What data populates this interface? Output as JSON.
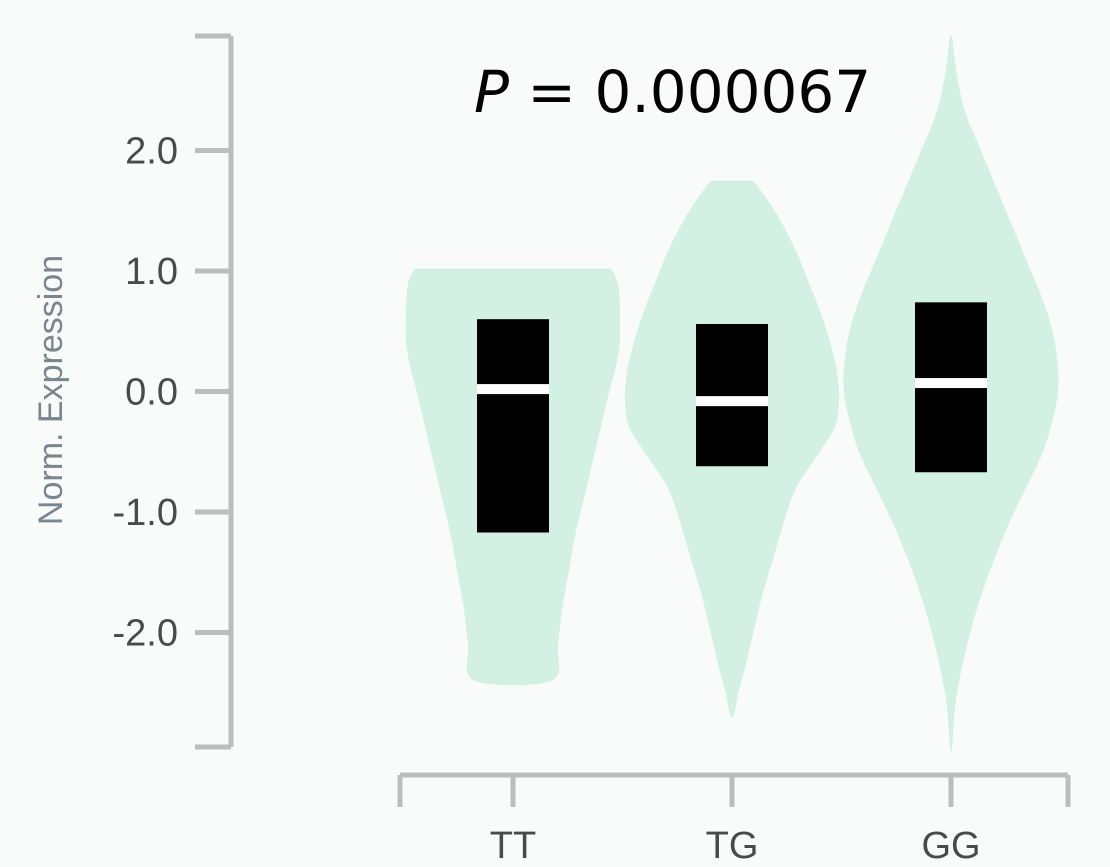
{
  "chart_data": {
    "type": "violin",
    "title": "",
    "annotation": {
      "prefix": "P",
      "text": " = 0.000067"
    },
    "xlabel": "",
    "ylabel": "Norm. Expression",
    "ylim": [
      -2.95,
      2.95
    ],
    "yticks": [
      2.0,
      1.0,
      0.0,
      -1.0,
      -2.0
    ],
    "ytick_labels": [
      "2.0",
      "1.0",
      "0.0",
      "-1.0",
      "-2.0"
    ],
    "categories": [
      "TT",
      "TG",
      "GG"
    ],
    "colors": {
      "violin": "#d2f0e4",
      "box": "#000000",
      "median": "#ffffff",
      "axis": "#bdbdbd"
    },
    "groups": [
      {
        "name": "TT",
        "median": 0.02,
        "q1": -1.17,
        "q3": 0.6,
        "min": -2.4,
        "max": 1.02,
        "density": [
          [
            1.02,
            0.92
          ],
          [
            0.9,
            0.98
          ],
          [
            0.7,
            1.0
          ],
          [
            0.5,
            1.0
          ],
          [
            0.4,
            1.0
          ],
          [
            0.2,
            0.96
          ],
          [
            0.0,
            0.9
          ],
          [
            -0.3,
            0.82
          ],
          [
            -0.6,
            0.74
          ],
          [
            -0.9,
            0.66
          ],
          [
            -1.2,
            0.58
          ],
          [
            -1.5,
            0.52
          ],
          [
            -1.8,
            0.46
          ],
          [
            -2.1,
            0.42
          ],
          [
            -2.4,
            0.36
          ]
        ]
      },
      {
        "name": "TG",
        "median": -0.08,
        "q1": -0.62,
        "q3": 0.56,
        "min": -2.68,
        "max": 1.75,
        "density": [
          [
            1.75,
            0.2
          ],
          [
            1.5,
            0.4
          ],
          [
            1.2,
            0.58
          ],
          [
            0.9,
            0.72
          ],
          [
            0.6,
            0.85
          ],
          [
            0.3,
            0.95
          ],
          [
            0.1,
            0.99
          ],
          [
            -0.1,
            1.0
          ],
          [
            -0.3,
            0.96
          ],
          [
            -0.5,
            0.82
          ],
          [
            -0.8,
            0.6
          ],
          [
            -1.1,
            0.48
          ],
          [
            -1.4,
            0.38
          ],
          [
            -1.7,
            0.28
          ],
          [
            -2.0,
            0.2
          ],
          [
            -2.3,
            0.12
          ],
          [
            -2.5,
            0.06
          ],
          [
            -2.68,
            0.02
          ]
        ]
      },
      {
        "name": "GG",
        "median": 0.07,
        "q1": -0.67,
        "q3": 0.74,
        "min": -2.95,
        "max": 2.95,
        "density": [
          [
            2.95,
            0.01
          ],
          [
            2.6,
            0.06
          ],
          [
            2.3,
            0.14
          ],
          [
            2.0,
            0.28
          ],
          [
            1.7,
            0.42
          ],
          [
            1.4,
            0.56
          ],
          [
            1.1,
            0.7
          ],
          [
            0.8,
            0.84
          ],
          [
            0.5,
            0.95
          ],
          [
            0.2,
            1.0
          ],
          [
            0.0,
            1.0
          ],
          [
            -0.2,
            0.96
          ],
          [
            -0.5,
            0.86
          ],
          [
            -0.8,
            0.7
          ],
          [
            -1.1,
            0.54
          ],
          [
            -1.4,
            0.4
          ],
          [
            -1.7,
            0.28
          ],
          [
            -2.0,
            0.18
          ],
          [
            -2.3,
            0.1
          ],
          [
            -2.6,
            0.04
          ],
          [
            -2.95,
            0.01
          ]
        ]
      }
    ]
  }
}
